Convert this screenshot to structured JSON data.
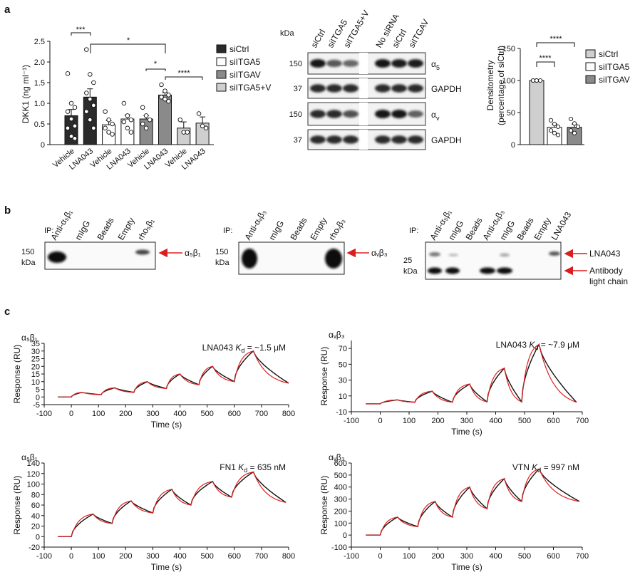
{
  "panel_letters": [
    "a",
    "b",
    "c"
  ],
  "a1": {
    "ylabel": "DKK1 (ng ml⁻¹)",
    "yticks": [
      "0",
      "0.5",
      "1.0",
      "1.5",
      "2.0",
      "2.5"
    ],
    "categories": [
      "Vehicle",
      "LNA043",
      "Vehicle",
      "LNA043",
      "Vehicle",
      "LNA043",
      "Vehicle",
      "LNA043"
    ],
    "legend": [
      "siCtrl",
      "siITGA5",
      "siITGAV",
      "siITGA5+V"
    ],
    "sig": [
      "***",
      "*",
      "*",
      "****"
    ]
  },
  "a2": {
    "kda": "kDa",
    "lanes": [
      "siCtrl",
      "siITGA5",
      "siITGA5+V",
      "No siRNA",
      "siCtrl",
      "siITGAV"
    ],
    "mw": [
      "150",
      "37",
      "150",
      "37"
    ],
    "bands": [
      "α",
      "GAPDH",
      "α",
      "GAPDH"
    ],
    "band_subs": [
      "5",
      "",
      "v",
      ""
    ]
  },
  "a3": {
    "ylabel1": "Densitometry",
    "ylabel2": "(percentage of siCtrl)",
    "yticks": [
      "0",
      "50",
      "100",
      "150"
    ],
    "legend": [
      "siCtrl",
      "siITGA5",
      "siITGAV"
    ],
    "sig": [
      "****",
      "****"
    ]
  },
  "b": {
    "ip": "IP:",
    "kda": "kDa",
    "p1_lanes": [
      "Anti-α₅β₁",
      "mIgG",
      "Beads",
      "Empty",
      "rho₅β₁"
    ],
    "p1_mw": "150",
    "p1_arrow": "α₅β₁",
    "p2_lanes": [
      "Anti-αᵥβ₃",
      "mIgG",
      "Beads",
      "Empty",
      "rhoᵥβ₃"
    ],
    "p2_mw": "150",
    "p2_arrow": "αᵥβ₃",
    "p3_lanes": [
      "Anti-α₅β₁",
      "mIgG",
      "Beads",
      "Anti-αᵥβ₃",
      "mIgG",
      "Beads",
      "Empty",
      "LNA043"
    ],
    "p3_mw": "25",
    "p3_arrow1": "LNA043",
    "p3_arrow2a": "Antibody",
    "p3_arrow2b": "light chain"
  },
  "c": {
    "xlabel": "Time (s)",
    "ylabel": "Response (RU)",
    "p1": {
      "title": "α₅β₁",
      "kd_pre": "LNA043 ",
      "kd_val": " = ~1.5 μM",
      "yticks": [
        "-5",
        "0",
        "5",
        "10",
        "15",
        "20",
        "25",
        "30",
        "35"
      ],
      "xticks": [
        "-100",
        "0",
        "100",
        "200",
        "300",
        "400",
        "500",
        "600",
        "700",
        "800"
      ]
    },
    "p2": {
      "title": "αᵥβ₃",
      "kd_pre": "LNA043 ",
      "kd_val": " = ~7.9 μM",
      "yticks": [
        "-10",
        "10",
        "30",
        "50",
        "70"
      ],
      "xticks": [
        "-100",
        "0",
        "100",
        "200",
        "300",
        "400",
        "500",
        "600",
        "700"
      ]
    },
    "p3": {
      "title": "α₅β₁",
      "kd_pre": "FN1 ",
      "kd_val": " = 635 nM",
      "yticks": [
        "-20",
        "0",
        "20",
        "40",
        "60",
        "80",
        "100",
        "120",
        "140"
      ],
      "xticks": [
        "-100",
        "0",
        "100",
        "200",
        "300",
        "400",
        "500",
        "600",
        "700",
        "800"
      ]
    },
    "p4": {
      "title": "αᵥβ₃",
      "kd_pre": "VTN ",
      "kd_val": " = 997 nM",
      "yticks": [
        "-100",
        "0",
        "100",
        "200",
        "300",
        "400",
        "500",
        "600"
      ],
      "xticks": [
        "-100",
        "0",
        "100",
        "200",
        "300",
        "400",
        "500",
        "600",
        "700"
      ]
    },
    "kd_k": "K",
    "kd_sub": "d"
  },
  "colors": {
    "black": "#2b2b2b",
    "white": "#ffffff",
    "mid_grey": "#8a8a8a",
    "light_grey": "#cfcfcf",
    "fit_red": "#e02020",
    "arrow_red": "#d81e1e"
  },
  "chart_data": [
    {
      "type": "bar",
      "ylabel": "DKK1 (ng ml⁻¹)",
      "ylim": [
        0,
        2.5
      ],
      "categories": [
        "Vehicle",
        "LNA043",
        "Vehicle",
        "LNA043",
        "Vehicle",
        "LNA043",
        "Vehicle",
        "LNA043"
      ],
      "groups": [
        "siCtrl",
        "siCtrl",
        "siITGA5",
        "siITGA5",
        "siITGAV",
        "siITGAV",
        "siITGA5+V",
        "siITGA5+V"
      ],
      "values": [
        0.7,
        1.15,
        0.48,
        0.62,
        0.62,
        1.2,
        0.4,
        0.52
      ],
      "errors": [
        0.15,
        0.2,
        0.1,
        0.1,
        0.08,
        0.06,
        0.15,
        0.15
      ],
      "points": [
        [
          1.72,
          1.0,
          0.9,
          0.8,
          0.62,
          0.45,
          0.4,
          0.2,
          0.15
        ],
        [
          2.3,
          1.7,
          1.5,
          1.25,
          1.1,
          0.95,
          0.8,
          0.6,
          0.4
        ],
        [
          0.8,
          0.6,
          0.5,
          0.4,
          0.3,
          0.25
        ],
        [
          1.0,
          0.7,
          0.6,
          0.55,
          0.4,
          0.3
        ],
        [
          0.9,
          0.7,
          0.6,
          0.5,
          0.4
        ],
        [
          1.45,
          1.3,
          1.2,
          1.15,
          1.1,
          1.05
        ],
        [
          0.6,
          0.3,
          0.3
        ],
        [
          0.75,
          0.45,
          0.4
        ]
      ]
    },
    {
      "type": "bar",
      "ylabel": "Densitometry (percentage of siCtrl)",
      "ylim": [
        0,
        150
      ],
      "categories": [
        "siCtrl",
        "siITGA5",
        "siITGAV"
      ],
      "values": [
        100,
        27,
        27
      ],
      "errors": [
        1,
        5,
        5
      ],
      "points": [
        [
          100,
          100,
          100,
          100,
          100
        ],
        [
          38,
          32,
          28,
          22,
          18,
          15
        ],
        [
          40,
          33,
          28,
          22,
          18
        ]
      ]
    },
    {
      "type": "line",
      "title": "α₅β₁ – LNA043",
      "xlabel": "Time (s)",
      "ylabel": "Response (RU)",
      "xlim": [
        -100,
        800
      ],
      "ylim": [
        -5,
        35
      ],
      "baseline_start": -50,
      "injections": [
        [
          40,
          0,
          3.0,
          1.5
        ],
        [
          160,
          110,
          6.0,
          3.0
        ],
        [
          280,
          230,
          10.0,
          5.5
        ],
        [
          400,
          350,
          15.0,
          8.0
        ],
        [
          520,
          470,
          20.0,
          10.0
        ],
        [
          600,
          670,
          30.0,
          9.0
        ]
      ],
      "end_time": 800
    },
    {
      "type": "line",
      "title": "αᵥβ₃ – LNA043",
      "xlabel": "Time (s)",
      "ylabel": "Response (RU)",
      "xlim": [
        -100,
        700
      ],
      "ylim": [
        -10,
        80
      ],
      "baseline_start": -50,
      "injections": [
        [
          0,
          60,
          5.0,
          2.0
        ],
        [
          120,
          180,
          16.0,
          2.0
        ],
        [
          250,
          310,
          25.0,
          2.5
        ],
        [
          370,
          430,
          45.0,
          2.5
        ],
        [
          490,
          550,
          75.0,
          2.0
        ]
      ],
      "end_time": 680
    },
    {
      "type": "line",
      "title": "α₅β₁ – FN1",
      "xlabel": "Time (s)",
      "ylabel": "Response (RU)",
      "xlim": [
        -100,
        800
      ],
      "ylim": [
        -20,
        140
      ],
      "baseline_start": -50,
      "injections": [
        [
          0,
          80,
          43,
          25
        ],
        [
          150,
          220,
          68,
          45
        ],
        [
          300,
          370,
          90,
          60
        ],
        [
          440,
          520,
          105,
          75
        ],
        [
          590,
          670,
          123,
          65
        ]
      ],
      "end_time": 790
    },
    {
      "type": "line",
      "title": "αᵥβ₃ – VTN",
      "xlabel": "Time (s)",
      "ylabel": "Response (RU)",
      "xlim": [
        -100,
        700
      ],
      "ylim": [
        -100,
        600
      ],
      "baseline_start": -50,
      "injections": [
        [
          0,
          60,
          150,
          70
        ],
        [
          130,
          190,
          280,
          150
        ],
        [
          250,
          310,
          400,
          220
        ],
        [
          370,
          430,
          470,
          280
        ],
        [
          490,
          550,
          550,
          280
        ]
      ],
      "end_time": 690
    }
  ]
}
